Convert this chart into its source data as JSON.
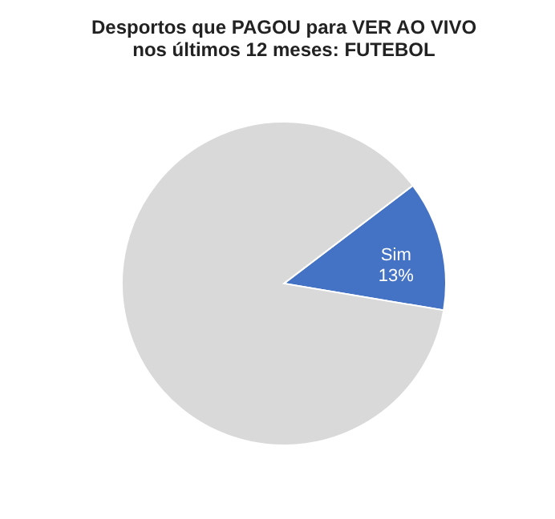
{
  "chart_data": {
    "type": "pie",
    "title": "Desportos que PAGOU para VER AO VIVO\nnos últimos 12 meses: FUTEBOL",
    "categories": [
      "Sim",
      null
    ],
    "values": [
      13,
      87
    ],
    "colors": [
      "#4472c4",
      "#d9d9d9"
    ],
    "value_labels": [
      "13%",
      null
    ],
    "legend": false
  }
}
